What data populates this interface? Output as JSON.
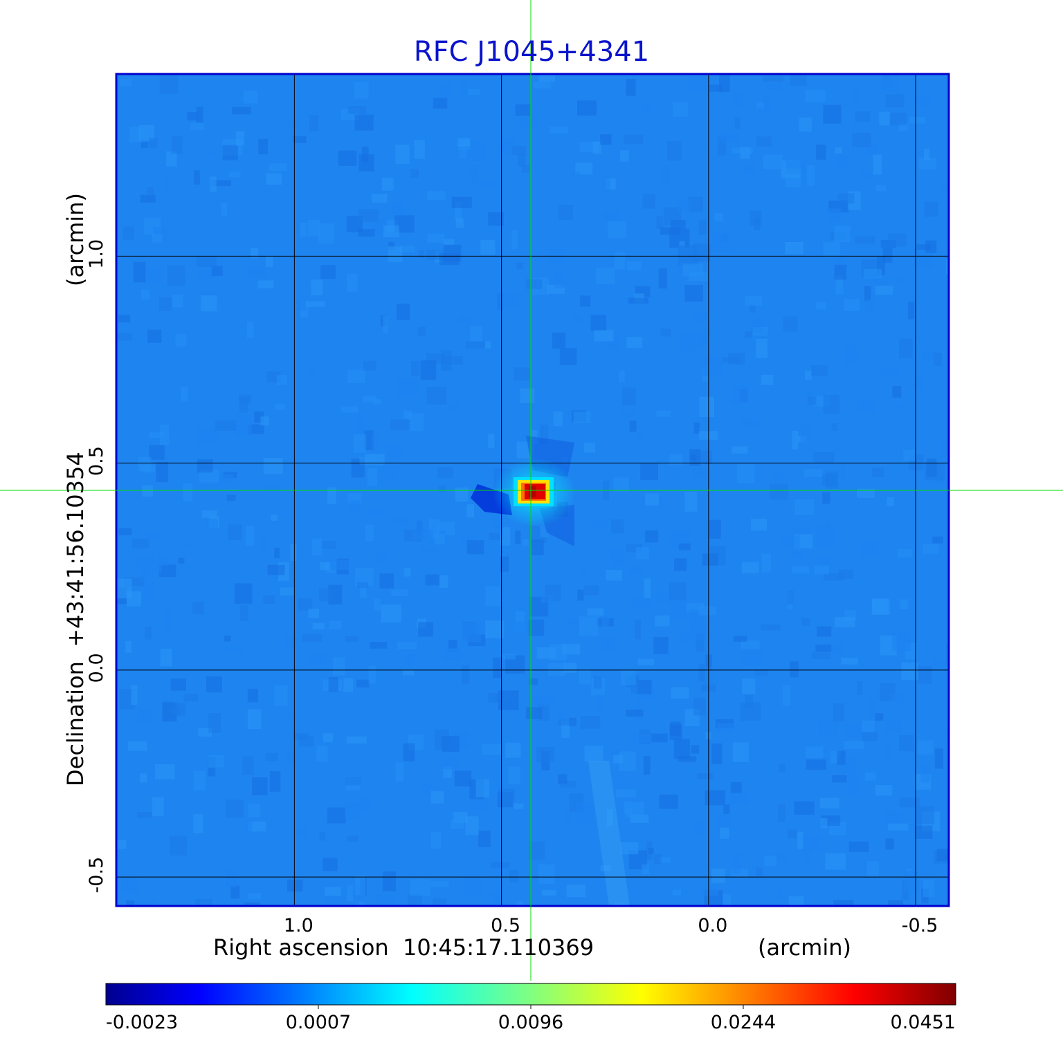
{
  "chart_data": {
    "type": "heatmap",
    "title": "RFC J1045+4341",
    "xlabel": "Right ascension  10:45:17.110369",
    "xunit": "(arcmin)",
    "ylabel": "Declination  +43:41:56.10354",
    "yunit": "(arcmin)",
    "x_range": [
      1.43,
      -0.58
    ],
    "y_range": [
      -0.57,
      1.44
    ],
    "x_ticks": [
      1.0,
      0.5,
      0.0,
      -0.5
    ],
    "x_tick_labels": [
      "1.0",
      "0.5",
      "0.0",
      "-0.5"
    ],
    "y_ticks": [
      -0.5,
      0.0,
      0.5,
      1.0
    ],
    "y_tick_labels": [
      "-0.5",
      "0.0",
      "0.5",
      "1.0"
    ],
    "grid": true,
    "grid_color": "#000000",
    "crosshair": {
      "x": 0.433,
      "y": 0.436,
      "color": "#00dd00"
    },
    "source_peak": {
      "x": 0.433,
      "y": 0.436,
      "value": 0.0451
    },
    "colorbar": {
      "colormap": "jet",
      "tick_labels": [
        "-0.0023",
        "0.0007",
        "0.0096",
        "0.0244",
        "0.0451"
      ],
      "min": -0.0023,
      "max": 0.0451
    },
    "background_color": "#1e84f0",
    "frame_color": "#0000cc"
  }
}
